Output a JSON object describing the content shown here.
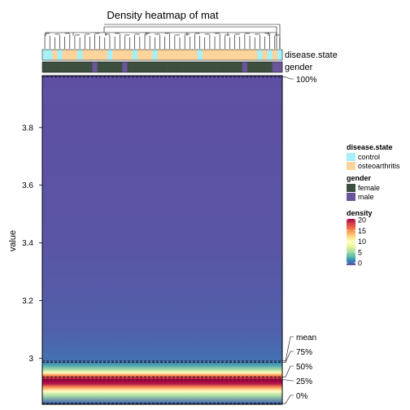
{
  "chart_data": {
    "type": "heatmap",
    "title": "Density heatmap of mat",
    "ylabel": "value",
    "ylim": [
      2.84,
      3.98
    ],
    "y_ticks": [
      3,
      3.2,
      3.4,
      3.6,
      3.8
    ],
    "y_tick_labels": [
      "3",
      "3.2",
      "3.4",
      "3.6",
      "3.8"
    ],
    "num_columns": 48,
    "annotations": [
      {
        "name": "disease.state",
        "legend_title": "disease.state",
        "levels": [
          {
            "label": "control",
            "color": "#a8f0f8"
          },
          {
            "label": "osteoarthritis",
            "color": "#fcd49c"
          }
        ],
        "values": [
          0,
          0,
          1,
          0,
          1,
          1,
          1,
          0,
          1,
          1,
          1,
          1,
          1,
          0,
          1,
          1,
          1,
          1,
          0,
          1,
          1,
          1,
          0,
          1,
          1,
          1,
          1,
          1,
          1,
          1,
          1,
          0,
          1,
          1,
          1,
          1,
          1,
          1,
          1,
          1,
          1,
          1,
          1,
          0,
          1,
          0,
          1,
          0
        ]
      },
      {
        "name": "gender",
        "legend_title": "gender",
        "levels": [
          {
            "label": "female",
            "color": "#3d5040"
          },
          {
            "label": "male",
            "color": "#6a559a"
          }
        ],
        "values": [
          0,
          0,
          0,
          0,
          0,
          0,
          0,
          0,
          0,
          0,
          1,
          0,
          0,
          0,
          0,
          0,
          1,
          0,
          0,
          0,
          0,
          0,
          0,
          0,
          0,
          0,
          0,
          0,
          0,
          0,
          0,
          0,
          0,
          0,
          0,
          0,
          0,
          0,
          0,
          0,
          1,
          0,
          0,
          0,
          0,
          0,
          1,
          1
        ]
      }
    ],
    "density_legend": {
      "title": "density",
      "ticks": [
        0,
        5,
        10,
        15,
        20
      ],
      "tick_labels": [
        "0",
        "5",
        "10",
        "15",
        "20"
      ],
      "colors": [
        "#5e4fa2",
        "#3288bd",
        "#66c2a5",
        "#abdda4",
        "#e6f598",
        "#ffffbf",
        "#fee08b",
        "#fdae61",
        "#f46d43",
        "#d53e4f",
        "#9e0142"
      ]
    },
    "density_profile": [
      {
        "y": 2.845,
        "d": 1
      },
      {
        "y": 2.87,
        "d": 6
      },
      {
        "y": 2.885,
        "d": 10
      },
      {
        "y": 2.9,
        "d": 15
      },
      {
        "y": 2.91,
        "d": 19
      },
      {
        "y": 2.92,
        "d": 21
      },
      {
        "y": 2.93,
        "d": 19
      },
      {
        "y": 2.94,
        "d": 15
      },
      {
        "y": 2.95,
        "d": 10
      },
      {
        "y": 2.96,
        "d": 6
      },
      {
        "y": 2.975,
        "d": 3
      },
      {
        "y": 2.99,
        "d": 1.2
      },
      {
        "y": 3.1,
        "d": 0.6
      },
      {
        "y": 3.4,
        "d": 0.2
      },
      {
        "y": 3.98,
        "d": 0
      }
    ],
    "quantile_lines": [
      {
        "label": "100%",
        "y": 3.975
      },
      {
        "label": "mean",
        "y": 2.99
      },
      {
        "label": "75%",
        "y": 2.985
      },
      {
        "label": "50%",
        "y": 2.935
      },
      {
        "label": "25%",
        "y": 2.925
      },
      {
        "label": "0%",
        "y": 2.843
      }
    ]
  }
}
